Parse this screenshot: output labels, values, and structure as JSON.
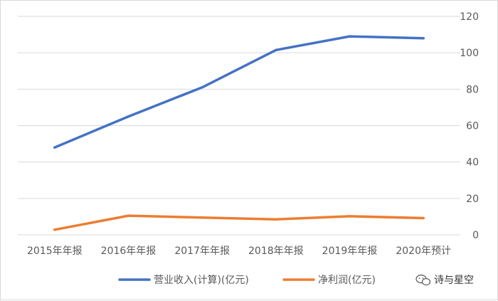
{
  "chart_data": {
    "type": "line",
    "categories": [
      "2015年年报",
      "2016年年报",
      "2017年年报",
      "2018年年报",
      "2019年年报",
      "2020年预计"
    ],
    "series": [
      {
        "name": "营业收入(计算)(亿元)",
        "values": [
          48,
          65,
          81,
          101.5,
          109,
          108
        ],
        "color": "#4472C4"
      },
      {
        "name": "净利润(亿元)",
        "values": [
          2.8,
          10.5,
          9.5,
          8.5,
          10.2,
          9.2
        ],
        "color": "#ED7D31"
      }
    ],
    "y_ticks": [
      "0",
      "20",
      "40",
      "60",
      "80",
      "100",
      "120"
    ],
    "ylim": [
      0,
      120
    ],
    "y_axis_side": "right",
    "grid": true,
    "legend_position": "bottom"
  },
  "watermark": {
    "text": "诗与星空",
    "icon": "wechat-logo-icon"
  }
}
